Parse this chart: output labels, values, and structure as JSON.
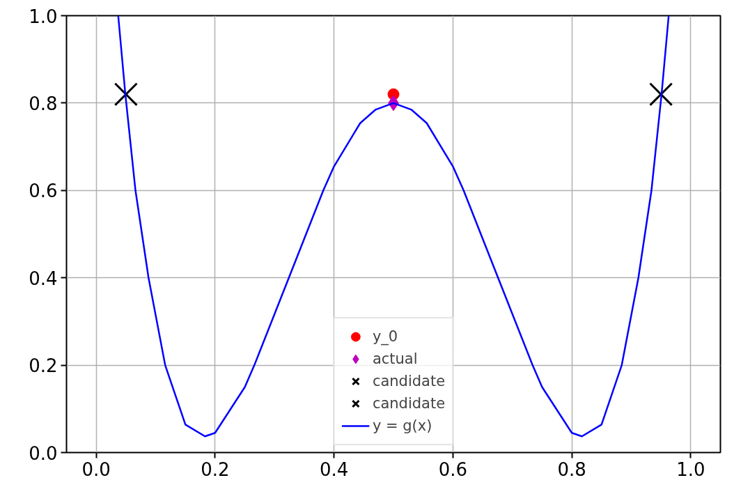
{
  "chart_data": {
    "type": "scatter",
    "xlim": [
      -0.05,
      1.05
    ],
    "ylim": [
      0,
      1.0
    ],
    "xticks": [
      {
        "value": 0,
        "label": "0.0"
      },
      {
        "value": 0.2,
        "label": "0.2"
      },
      {
        "value": 0.4,
        "label": "0.4"
      },
      {
        "value": 0.6,
        "label": "0.6"
      },
      {
        "value": 0.8,
        "label": "0.8"
      },
      {
        "value": 1.0,
        "label": "1.0"
      }
    ],
    "yticks": [
      {
        "value": 0,
        "label": "0.0"
      },
      {
        "value": 0.2,
        "label": "0.2"
      },
      {
        "value": 0.4,
        "label": "0.4"
      },
      {
        "value": 0.6,
        "label": "0.6"
      },
      {
        "value": 0.8,
        "label": "0.8"
      },
      {
        "value": 1.0,
        "label": "1.0"
      }
    ],
    "grid": true,
    "legend": "bottom",
    "series": [
      {
        "name": "y_0",
        "marker": "circle",
        "color": "#ff0000",
        "x": [
          0.5
        ],
        "values": [
          0.82
        ]
      },
      {
        "name": "actual",
        "marker": "diamond",
        "color": "#bf00bf",
        "x": [
          0.5
        ],
        "values": [
          0.8
        ]
      },
      {
        "name": "candidate",
        "marker": "cross",
        "color": "#000000",
        "x": [
          0.05
        ],
        "values": [
          0.82
        ]
      },
      {
        "name": "candidate",
        "marker": "cross",
        "color": "#000000",
        "x": [
          0.95
        ],
        "values": [
          0.82
        ]
      },
      {
        "name": "y = g(x)",
        "type": "line",
        "color": "#0000ff",
        "x": [
          0.037,
          0.049,
          0.066,
          0.088,
          0.116,
          0.15,
          0.183,
          0.2,
          0.25,
          0.266,
          0.324,
          0.382,
          0.4,
          0.444,
          0.47,
          0.5,
          0.53,
          0.556,
          0.6,
          0.618,
          0.676,
          0.734,
          0.75,
          0.8,
          0.817,
          0.85,
          0.884,
          0.912,
          0.934,
          0.951,
          0.963
        ],
        "values": [
          1.0,
          0.82,
          0.6,
          0.4,
          0.2,
          0.064,
          0.037,
          0.045,
          0.15,
          0.2,
          0.4,
          0.6,
          0.655,
          0.754,
          0.785,
          0.8,
          0.785,
          0.754,
          0.655,
          0.6,
          0.4,
          0.2,
          0.15,
          0.045,
          0.037,
          0.064,
          0.2,
          0.4,
          0.6,
          0.82,
          1.0
        ]
      }
    ]
  }
}
